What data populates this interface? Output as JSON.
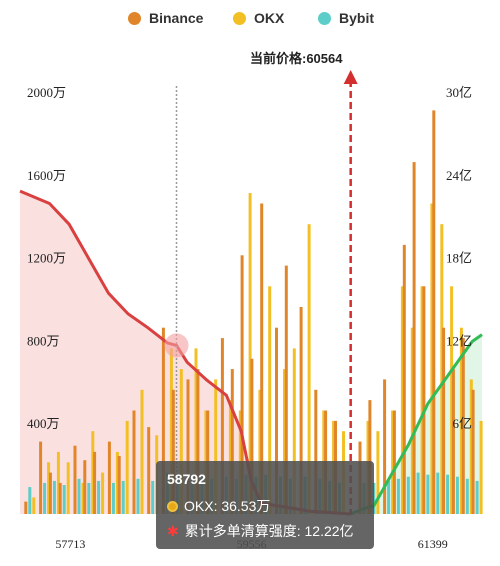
{
  "legend": [
    {
      "name": "Binance",
      "color": "#e0852a"
    },
    {
      "name": "OKX",
      "color": "#f2c024"
    },
    {
      "name": "Bybit",
      "color": "#5ccdc8"
    }
  ],
  "current_price_label": "当前价格:60564",
  "tooltip": {
    "title": "58792",
    "okx_label": "OKX: 36.53万",
    "cum_label": "累计多单清算强度: 12.22亿"
  },
  "chart_data": {
    "type": "bar",
    "x_range": [
      57200,
      61900
    ],
    "x_ticks": [
      {
        "value": 57713,
        "label": "57713"
      },
      {
        "value": 59556,
        "label": "59556"
      },
      {
        "value": 61399,
        "label": "61399"
      }
    ],
    "y_left": {
      "range": [
        0,
        2000
      ],
      "unit": "万",
      "ticks": [
        {
          "value": 400,
          "label": "400万"
        },
        {
          "value": 800,
          "label": "800万"
        },
        {
          "value": 1200,
          "label": "1200万"
        },
        {
          "value": 1600,
          "label": "1600万"
        },
        {
          "value": 2000,
          "label": "2000万"
        }
      ]
    },
    "y_right": {
      "range": [
        0,
        30
      ],
      "unit": "亿",
      "ticks": [
        {
          "value": 6,
          "label": "6亿"
        },
        {
          "value": 12,
          "label": "12亿"
        },
        {
          "value": 18,
          "label": "18亿"
        },
        {
          "value": 24,
          "label": "24亿"
        },
        {
          "value": 30,
          "label": "30亿"
        }
      ]
    },
    "current_price": 60564,
    "hover_price": 58792,
    "series_colors": {
      "Binance": "#e0852a",
      "OKX": "#f2c024",
      "Bybit": "#5ccdc8"
    },
    "bars": [
      {
        "x": 57300,
        "Binance": 60,
        "OKX": 80,
        "Bybit": 130
      },
      {
        "x": 57450,
        "Binance": 350,
        "OKX": 250,
        "Bybit": 150
      },
      {
        "x": 57550,
        "Binance": 200,
        "OKX": 300,
        "Bybit": 160
      },
      {
        "x": 57650,
        "Binance": 150,
        "OKX": 250,
        "Bybit": 140
      },
      {
        "x": 57800,
        "Binance": 330,
        "OKX": 150,
        "Bybit": 170
      },
      {
        "x": 57900,
        "Binance": 260,
        "OKX": 400,
        "Bybit": 150
      },
      {
        "x": 58000,
        "Binance": 300,
        "OKX": 200,
        "Bybit": 160
      },
      {
        "x": 58150,
        "Binance": 350,
        "OKX": 300,
        "Bybit": 150
      },
      {
        "x": 58250,
        "Binance": 280,
        "OKX": 450,
        "Bybit": 160
      },
      {
        "x": 58400,
        "Binance": 500,
        "OKX": 600,
        "Bybit": 170
      },
      {
        "x": 58550,
        "Binance": 420,
        "OKX": 380,
        "Bybit": 160
      },
      {
        "x": 58700,
        "Binance": 900,
        "OKX": 800,
        "Bybit": 200
      },
      {
        "x": 58800,
        "Binance": 600,
        "OKX": 700,
        "Bybit": 180
      },
      {
        "x": 58950,
        "Binance": 650,
        "OKX": 800,
        "Bybit": 170
      },
      {
        "x": 59050,
        "Binance": 700,
        "OKX": 500,
        "Bybit": 180
      },
      {
        "x": 59150,
        "Binance": 500,
        "OKX": 650,
        "Bybit": 170
      },
      {
        "x": 59300,
        "Binance": 850,
        "OKX": 550,
        "Bybit": 180
      },
      {
        "x": 59400,
        "Binance": 700,
        "OKX": 500,
        "Bybit": 170
      },
      {
        "x": 59500,
        "Binance": 1250,
        "OKX": 1550,
        "Bybit": 190
      },
      {
        "x": 59600,
        "Binance": 750,
        "OKX": 600,
        "Bybit": 180
      },
      {
        "x": 59700,
        "Binance": 1500,
        "OKX": 1100,
        "Bybit": 190
      },
      {
        "x": 59850,
        "Binance": 900,
        "OKX": 700,
        "Bybit": 180
      },
      {
        "x": 59950,
        "Binance": 1200,
        "OKX": 800,
        "Bybit": 170
      },
      {
        "x": 60100,
        "Binance": 1000,
        "OKX": 1400,
        "Bybit": 180
      },
      {
        "x": 60250,
        "Binance": 600,
        "OKX": 500,
        "Bybit": 170
      },
      {
        "x": 60350,
        "Binance": 500,
        "OKX": 450,
        "Bybit": 160
      },
      {
        "x": 60450,
        "Binance": 450,
        "OKX": 400,
        "Bybit": 150
      },
      {
        "x": 60700,
        "Binance": 350,
        "OKX": 450,
        "Bybit": 150
      },
      {
        "x": 60800,
        "Binance": 550,
        "OKX": 400,
        "Bybit": 150
      },
      {
        "x": 60950,
        "Binance": 650,
        "OKX": 500,
        "Bybit": 160
      },
      {
        "x": 61050,
        "Binance": 500,
        "OKX": 1100,
        "Bybit": 170
      },
      {
        "x": 61150,
        "Binance": 1300,
        "OKX": 900,
        "Bybit": 180
      },
      {
        "x": 61250,
        "Binance": 1700,
        "OKX": 1100,
        "Bybit": 200
      },
      {
        "x": 61350,
        "Binance": 1100,
        "OKX": 1500,
        "Bybit": 190
      },
      {
        "x": 61450,
        "Binance": 1950,
        "OKX": 1400,
        "Bybit": 200
      },
      {
        "x": 61550,
        "Binance": 900,
        "OKX": 1100,
        "Bybit": 190
      },
      {
        "x": 61650,
        "Binance": 700,
        "OKX": 900,
        "Bybit": 180
      },
      {
        "x": 61750,
        "Binance": 850,
        "OKX": 650,
        "Bybit": 170
      },
      {
        "x": 61850,
        "Binance": 600,
        "OKX": 450,
        "Bybit": 160
      }
    ],
    "cumulative_long": {
      "color": "#d94040",
      "points": [
        [
          57200,
          23.4
        ],
        [
          57500,
          22.5
        ],
        [
          57700,
          21.0
        ],
        [
          57900,
          18.5
        ],
        [
          58100,
          16.0
        ],
        [
          58300,
          14.5
        ],
        [
          58500,
          13.5
        ],
        [
          58700,
          12.4
        ],
        [
          58792,
          12.22
        ],
        [
          58900,
          11.0
        ],
        [
          59100,
          9.7
        ],
        [
          59300,
          8.6
        ],
        [
          59450,
          6.0
        ],
        [
          59550,
          2.5
        ],
        [
          59650,
          0.8
        ],
        [
          60150,
          0.2
        ],
        [
          60564,
          0
        ]
      ]
    },
    "cumulative_short": {
      "color": "#33bb55",
      "points": [
        [
          60564,
          0
        ],
        [
          60700,
          0.4
        ],
        [
          60800,
          0.6
        ],
        [
          60950,
          2.5
        ],
        [
          61150,
          5.0
        ],
        [
          61350,
          8.0
        ],
        [
          61550,
          10.0
        ],
        [
          61700,
          11.5
        ],
        [
          61800,
          12.5
        ],
        [
          61900,
          13.0
        ]
      ]
    }
  }
}
